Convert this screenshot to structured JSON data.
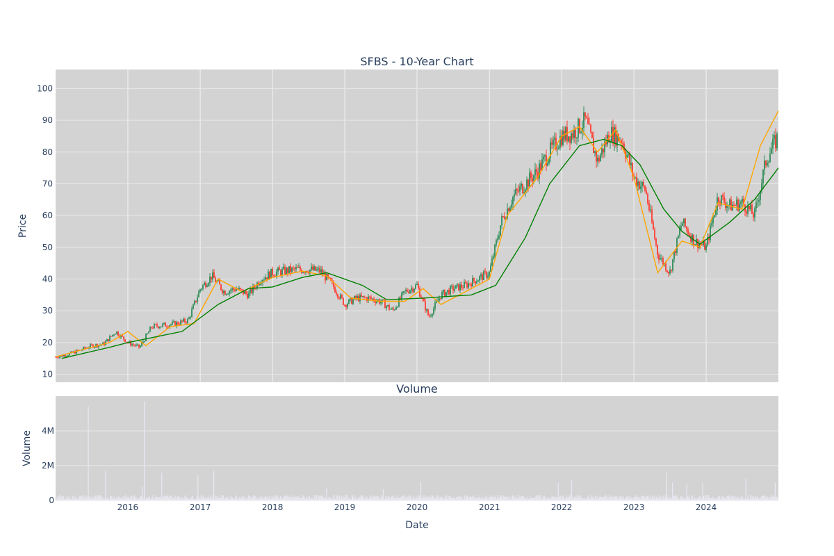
{
  "chart_data": [
    {
      "type": "candlestick",
      "title": "SFBS - 10-Year Chart",
      "ylabel": "Price",
      "ylim": [
        7.5,
        106
      ],
      "yticks": [
        10,
        20,
        30,
        40,
        50,
        60,
        70,
        80,
        90,
        100
      ],
      "xlim": [
        "2015-01-01",
        "2024-12-31"
      ],
      "xticks": [
        "2016",
        "2017",
        "2018",
        "2019",
        "2020",
        "2021",
        "2022",
        "2023",
        "2024"
      ],
      "grid": true,
      "colors": {
        "background": "#d3d3d3",
        "grid": "#e8e8e8",
        "up": "#2e8b57",
        "down": "#ff3b30",
        "ma_fast": "#ffa500",
        "ma_slow": "#008000"
      },
      "series": [
        {
          "kind": "close",
          "x": [
            "2015-01-01",
            "2015-03-01",
            "2015-05-01",
            "2015-07-01",
            "2015-09-01",
            "2015-11-01",
            "2016-01-01",
            "2016-03-01",
            "2016-05-01",
            "2016-07-01",
            "2016-09-01",
            "2016-11-01",
            "2017-01-01",
            "2017-03-01",
            "2017-05-01",
            "2017-07-01",
            "2017-09-01",
            "2017-11-01",
            "2018-01-01",
            "2018-03-01",
            "2018-05-01",
            "2018-07-01",
            "2018-09-01",
            "2018-11-01",
            "2019-01-01",
            "2019-03-01",
            "2019-05-01",
            "2019-07-01",
            "2019-09-01",
            "2019-11-01",
            "2020-01-01",
            "2020-03-01",
            "2020-05-01",
            "2020-07-01",
            "2020-09-01",
            "2020-11-01",
            "2021-01-01",
            "2021-03-01",
            "2021-05-01",
            "2021-07-01",
            "2021-09-01",
            "2021-11-01",
            "2022-01-01",
            "2022-03-01",
            "2022-05-01",
            "2022-07-01",
            "2022-09-01",
            "2022-11-01",
            "2023-01-01",
            "2023-03-01",
            "2023-05-01",
            "2023-07-01",
            "2023-09-01",
            "2023-11-01",
            "2024-01-01",
            "2024-03-01",
            "2024-05-01",
            "2024-07-01",
            "2024-09-01",
            "2024-11-01",
            "2024-12-31"
          ],
          "values": [
            15.5,
            16.2,
            17.5,
            19,
            19.5,
            23.5,
            20,
            18.5,
            25,
            25.5,
            26,
            27,
            37,
            41,
            36,
            37,
            35,
            40,
            42,
            42.5,
            43,
            43,
            42.5,
            38,
            32,
            34,
            34,
            33,
            30,
            36,
            38,
            28,
            35,
            37,
            38,
            40,
            42,
            58,
            66,
            70,
            74,
            80,
            85,
            86,
            90,
            77,
            86,
            84,
            72,
            68,
            48,
            42,
            58,
            52,
            50,
            66,
            63,
            64,
            60,
            78,
            85
          ]
        },
        {
          "kind": "ma_fast",
          "x": [
            "2015-01-01",
            "2015-06-01",
            "2015-10-01",
            "2016-01-01",
            "2016-04-01",
            "2016-08-01",
            "2016-12-01",
            "2017-04-01",
            "2017-08-01",
            "2018-01-01",
            "2018-06-01",
            "2018-10-01",
            "2019-02-01",
            "2019-07-01",
            "2019-11-01",
            "2020-02-01",
            "2020-05-01",
            "2020-09-01",
            "2021-01-01",
            "2021-04-01",
            "2021-09-01",
            "2022-01-01",
            "2022-04-01",
            "2022-07-01",
            "2022-10-01",
            "2023-01-01",
            "2023-05-01",
            "2023-09-01",
            "2023-12-01",
            "2024-03-01",
            "2024-07-01",
            "2024-10-01",
            "2024-12-31"
          ],
          "values": [
            15.5,
            18,
            20,
            23.5,
            19,
            25,
            26,
            40,
            36,
            40.5,
            42.5,
            41,
            34,
            33,
            33,
            37,
            32,
            36,
            40,
            60,
            72,
            85,
            88,
            80,
            87,
            72,
            42,
            52,
            50,
            64,
            62,
            82,
            93
          ]
        },
        {
          "kind": "ma_slow",
          "x": [
            "2015-02-01",
            "2015-10-01",
            "2016-01-01",
            "2016-10-01",
            "2017-04-01",
            "2017-09-01",
            "2018-01-01",
            "2018-06-01",
            "2018-10-01",
            "2019-04-01",
            "2019-08-01",
            "2020-02-01",
            "2020-06-01",
            "2020-10-01",
            "2021-02-01",
            "2021-07-01",
            "2021-11-01",
            "2022-04-01",
            "2022-08-01",
            "2022-11-01",
            "2023-02-01",
            "2023-06-01",
            "2023-09-01",
            "2023-12-01",
            "2024-05-01",
            "2024-09-01",
            "2024-12-31"
          ],
          "values": [
            15,
            18.5,
            20,
            23.5,
            32,
            37,
            37.5,
            40.5,
            42,
            38,
            33.5,
            34,
            34.5,
            35,
            38,
            53,
            70,
            82,
            84,
            82,
            76,
            62,
            55,
            51,
            58,
            65,
            75
          ]
        }
      ]
    },
    {
      "type": "bar",
      "title": "Volume",
      "xlabel": "Date",
      "ylabel": "Volume",
      "ylim": [
        0,
        6000000
      ],
      "yticks": [
        0,
        2000000,
        4000000
      ],
      "ytick_labels": [
        "0",
        "2M",
        "4M"
      ],
      "colors": {
        "bars": "#e6e6f0"
      },
      "spikes": {
        "x": [
          "2015-06-15",
          "2015-09-10",
          "2016-03-15",
          "2016-03-25",
          "2016-06-20",
          "2016-12-20",
          "2017-03-10",
          "2018-10-01",
          "2019-07-15",
          "2020-01-20",
          "2021-12-15",
          "2022-02-20",
          "2023-06-15",
          "2023-07-15",
          "2023-09-25",
          "2023-12-15",
          "2024-07-20",
          "2024-12-15"
        ],
        "values": [
          5400000,
          1700000,
          800000,
          5700000,
          1600000,
          1450000,
          1700000,
          700000,
          650000,
          1050000,
          1000000,
          1150000,
          1600000,
          1050000,
          950000,
          1000000,
          1250000,
          1000000
        ]
      }
    }
  ]
}
